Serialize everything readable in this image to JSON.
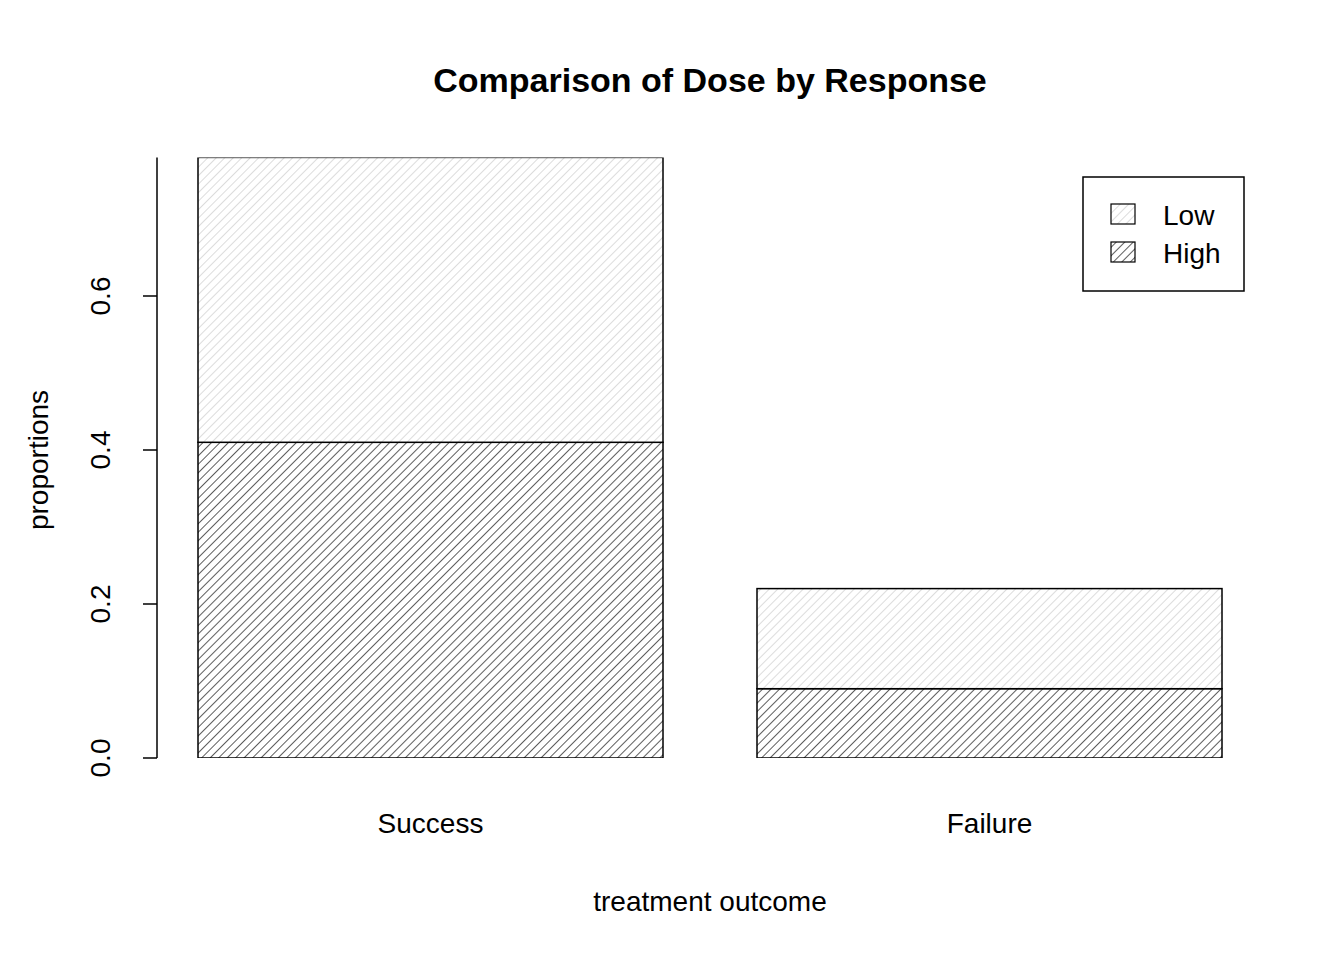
{
  "chart_data": {
    "type": "bar",
    "title": "Comparison of Dose by Response",
    "x_label": "treatment outcome",
    "y_label": "proportions",
    "categories": [
      "Success",
      "Failure"
    ],
    "series": [
      {
        "name": "High",
        "color": "#333333",
        "values": [
          0.41,
          0.09
        ]
      },
      {
        "name": "Low",
        "color": "#d4d4d4",
        "values": [
          0.37,
          0.13
        ]
      }
    ],
    "stacked": true,
    "legend": "topright",
    "ylim": [
      0,
      0.78
    ],
    "yticks": [
      {
        "value": 0,
        "label": "0.0"
      },
      0.2,
      0.4,
      0.6
    ]
  }
}
